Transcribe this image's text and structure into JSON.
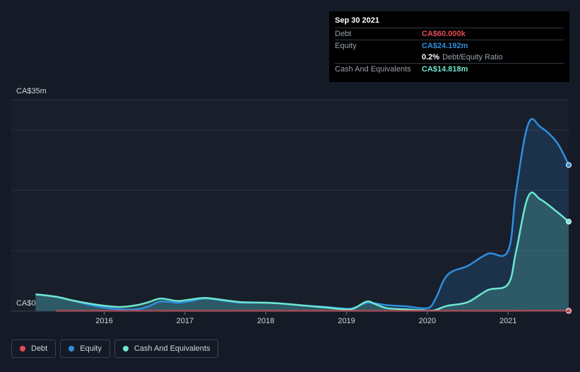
{
  "tooltip": {
    "date": "Sep 30 2021",
    "debt_label": "Debt",
    "debt_value": "CA$60.000k",
    "equity_label": "Equity",
    "equity_value": "CA$24.192m",
    "ratio_pct": "0.2%",
    "ratio_label": "Debt/Equity Ratio",
    "cash_label": "Cash And Equivalents",
    "cash_value": "CA$14.818m"
  },
  "colors": {
    "debt": "#e64c55",
    "equity": "#2e8fe0",
    "cash": "#6ee6cf",
    "background": "#151b26",
    "plot_bg": "#181e2a"
  },
  "legend": [
    {
      "name": "Debt",
      "color": "#e64c55"
    },
    {
      "name": "Equity",
      "color": "#2e8fe0"
    },
    {
      "name": "Cash And Equivalents",
      "color": "#6ee6cf"
    }
  ],
  "chart_data": {
    "type": "area",
    "title": "",
    "xlabel": "",
    "ylabel": "",
    "y_tick_labels": [
      "CA$35m",
      "CA$0"
    ],
    "ylim": [
      0,
      35
    ],
    "xlim": [
      2015.13,
      2021.75
    ],
    "x_ticks": [
      {
        "value": 2016,
        "label": "2016"
      },
      {
        "value": 2017,
        "label": "2017"
      },
      {
        "value": 2018,
        "label": "2018"
      },
      {
        "value": 2019,
        "label": "2019"
      },
      {
        "value": 2020,
        "label": "2020"
      },
      {
        "value": 2021,
        "label": "2021"
      }
    ],
    "gridlines": [
      0,
      10,
      20,
      30
    ],
    "series": [
      {
        "name": "Equity",
        "x": [
          2015.15,
          2015.4,
          2015.6,
          2015.8,
          2016.0,
          2016.2,
          2016.4,
          2016.55,
          2016.7,
          2016.9,
          2017.05,
          2017.25,
          2017.5,
          2017.7,
          2018.0,
          2018.25,
          2018.5,
          2018.75,
          2019.0,
          2019.1,
          2019.25,
          2019.35,
          2019.5,
          2019.75,
          2020.0,
          2020.1,
          2020.25,
          2020.5,
          2020.75,
          2021.0,
          2021.1,
          2021.25,
          2021.4,
          2021.6,
          2021.75
        ],
        "values": [
          2.8,
          2.4,
          1.8,
          1.1,
          0.6,
          0.3,
          0.3,
          0.8,
          1.6,
          1.4,
          1.6,
          2.1,
          1.7,
          1.4,
          1.4,
          1.2,
          0.9,
          0.7,
          0.4,
          0.6,
          1.4,
          1.3,
          1.0,
          0.8,
          0.5,
          2.0,
          6.0,
          7.5,
          9.5,
          10.0,
          20.0,
          31.0,
          30.5,
          28.0,
          24.192
        ]
      },
      {
        "name": "Cash And Equivalents",
        "x": [
          2015.15,
          2015.4,
          2015.6,
          2015.8,
          2016.0,
          2016.2,
          2016.4,
          2016.55,
          2016.7,
          2016.9,
          2017.05,
          2017.25,
          2017.5,
          2017.7,
          2018.0,
          2018.25,
          2018.5,
          2018.75,
          2019.0,
          2019.1,
          2019.25,
          2019.35,
          2019.5,
          2019.75,
          2020.0,
          2020.1,
          2020.25,
          2020.5,
          2020.75,
          2021.0,
          2021.1,
          2021.25,
          2021.4,
          2021.6,
          2021.75
        ],
        "values": [
          2.8,
          2.4,
          1.8,
          1.3,
          0.9,
          0.7,
          1.0,
          1.5,
          2.1,
          1.7,
          1.9,
          2.2,
          1.8,
          1.5,
          1.4,
          1.2,
          0.9,
          0.6,
          0.3,
          0.5,
          1.6,
          1.2,
          0.5,
          0.3,
          0.1,
          0.2,
          0.9,
          1.5,
          3.5,
          4.5,
          10.0,
          19.0,
          18.5,
          16.5,
          14.818
        ]
      },
      {
        "name": "Debt",
        "x": [
          2015.4,
          2016.0,
          2017.0,
          2018.0,
          2019.0,
          2020.0,
          2021.0,
          2021.75
        ],
        "values": [
          0.05,
          0.05,
          0.05,
          0.05,
          0.05,
          0.05,
          0.05,
          0.06
        ]
      }
    ]
  }
}
